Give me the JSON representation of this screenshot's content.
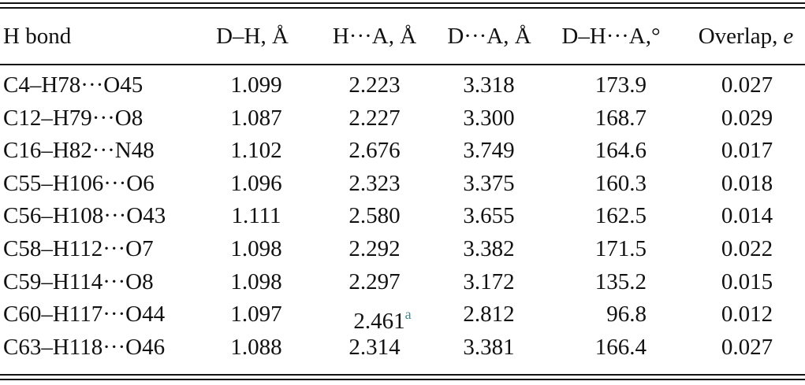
{
  "table": {
    "header": [
      "H bond",
      "D–H, Å",
      "H···A, Å",
      "D···A, Å",
      "D–H···A,°",
      [
        "Overlap,",
        "e"
      ]
    ],
    "rows": [
      [
        "C4–H78···O45",
        "1.099",
        "2.223",
        "3.318",
        "173.9",
        "0.027"
      ],
      [
        "C12–H79···O8",
        "1.087",
        "2.227",
        "3.300",
        "168.7",
        "0.029"
      ],
      [
        "C16–H82···N48",
        "1.102",
        "2.676",
        "3.749",
        "164.6",
        "0.017"
      ],
      [
        "C55–H106···O6",
        "1.096",
        "2.323",
        "3.375",
        "160.3",
        "0.018"
      ],
      [
        "C56–H108···O43",
        "1.111",
        "2.580",
        "3.655",
        "162.5",
        "0.014"
      ],
      [
        "C58–H112···O7",
        "1.098",
        "2.292",
        "3.382",
        "171.5",
        "0.022"
      ],
      [
        "C59–H114···O8",
        "1.098",
        "2.297",
        "3.172",
        "135.2",
        "0.015"
      ],
      [
        "C60–H117···O44",
        "1.097",
        {
          "value": "2.461",
          "note": "a"
        },
        "2.812",
        "96.8",
        "0.012"
      ],
      [
        "C63–H118···O46",
        "1.088",
        "2.314",
        "3.381",
        "166.4",
        "0.027"
      ]
    ]
  }
}
